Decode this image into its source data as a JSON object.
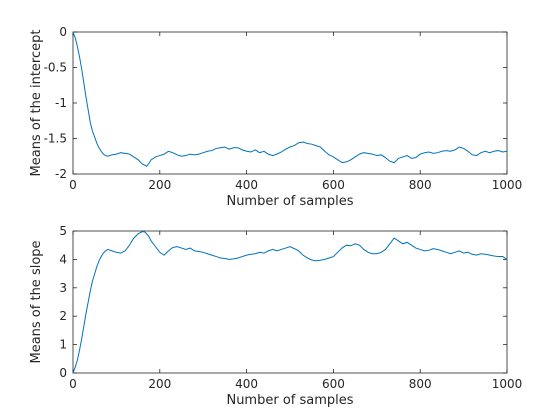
{
  "chart_data": [
    {
      "type": "line",
      "title": "",
      "xlabel": "Number of samples",
      "ylabel": "Means of the intercept",
      "xlim": [
        0,
        1000
      ],
      "ylim": [
        -2,
        0
      ],
      "xticks": [
        0,
        200,
        400,
        600,
        800,
        1000
      ],
      "xtick_labels": [
        "0",
        "200",
        "400",
        "600",
        "800",
        "1000"
      ],
      "yticks": [
        0,
        -0.5,
        -1,
        -1.5,
        -2
      ],
      "ytick_labels": [
        "0",
        "-0.5",
        "-1",
        "-1.5",
        "-2"
      ],
      "grid": false,
      "line_color": "#0072BD",
      "series": [
        {
          "x": [
            0,
            5,
            10,
            15,
            20,
            25,
            30,
            35,
            40,
            45,
            50,
            55,
            60,
            65,
            70,
            75,
            80,
            90,
            100,
            110,
            120,
            130,
            140,
            150,
            160,
            170,
            175,
            180,
            190,
            200,
            210,
            220,
            230,
            240,
            250,
            260,
            270,
            280,
            290,
            300,
            310,
            320,
            330,
            340,
            350,
            360,
            370,
            380,
            390,
            400,
            410,
            420,
            430,
            440,
            450,
            460,
            470,
            480,
            490,
            500,
            510,
            520,
            530,
            540,
            550,
            560,
            570,
            580,
            590,
            600,
            610,
            620,
            630,
            640,
            650,
            660,
            670,
            680,
            690,
            700,
            710,
            720,
            730,
            740,
            750,
            760,
            770,
            780,
            790,
            800,
            810,
            820,
            830,
            840,
            850,
            860,
            870,
            880,
            890,
            900,
            910,
            920,
            930,
            940,
            950,
            960,
            970,
            980,
            990,
            1000
          ],
          "y": [
            0,
            -0.08,
            -0.2,
            -0.35,
            -0.52,
            -0.72,
            -0.92,
            -1.1,
            -1.28,
            -1.4,
            -1.48,
            -1.57,
            -1.63,
            -1.68,
            -1.72,
            -1.74,
            -1.75,
            -1.73,
            -1.72,
            -1.7,
            -1.71,
            -1.72,
            -1.76,
            -1.8,
            -1.86,
            -1.89,
            -1.85,
            -1.8,
            -1.76,
            -1.74,
            -1.72,
            -1.68,
            -1.7,
            -1.73,
            -1.75,
            -1.74,
            -1.72,
            -1.73,
            -1.72,
            -1.7,
            -1.68,
            -1.67,
            -1.64,
            -1.63,
            -1.62,
            -1.65,
            -1.63,
            -1.63,
            -1.66,
            -1.68,
            -1.69,
            -1.66,
            -1.7,
            -1.68,
            -1.72,
            -1.74,
            -1.72,
            -1.69,
            -1.65,
            -1.62,
            -1.6,
            -1.56,
            -1.55,
            -1.57,
            -1.58,
            -1.6,
            -1.62,
            -1.68,
            -1.73,
            -1.76,
            -1.8,
            -1.84,
            -1.83,
            -1.8,
            -1.76,
            -1.72,
            -1.7,
            -1.71,
            -1.72,
            -1.74,
            -1.73,
            -1.77,
            -1.82,
            -1.84,
            -1.78,
            -1.76,
            -1.74,
            -1.78,
            -1.77,
            -1.72,
            -1.7,
            -1.69,
            -1.71,
            -1.7,
            -1.68,
            -1.67,
            -1.68,
            -1.66,
            -1.62,
            -1.64,
            -1.68,
            -1.73,
            -1.74,
            -1.7,
            -1.68,
            -1.7,
            -1.68,
            -1.67,
            -1.69,
            -1.68
          ]
        }
      ]
    },
    {
      "type": "line",
      "title": "",
      "xlabel": "Number of samples",
      "ylabel": "Means of the slope",
      "xlim": [
        0,
        1000
      ],
      "ylim": [
        0,
        5
      ],
      "xticks": [
        0,
        200,
        400,
        600,
        800,
        1000
      ],
      "xtick_labels": [
        "0",
        "200",
        "400",
        "600",
        "800",
        "1000"
      ],
      "yticks": [
        0,
        1,
        2,
        3,
        4,
        5
      ],
      "ytick_labels": [
        "0",
        "1",
        "2",
        "3",
        "4",
        "5"
      ],
      "grid": false,
      "line_color": "#0072BD",
      "series": [
        {
          "x": [
            0,
            5,
            10,
            15,
            20,
            25,
            30,
            35,
            40,
            45,
            50,
            55,
            60,
            65,
            70,
            75,
            80,
            90,
            100,
            110,
            120,
            130,
            140,
            150,
            160,
            165,
            170,
            175,
            180,
            190,
            200,
            210,
            220,
            230,
            240,
            250,
            260,
            270,
            280,
            290,
            300,
            310,
            320,
            330,
            340,
            350,
            360,
            370,
            380,
            390,
            400,
            410,
            420,
            430,
            440,
            450,
            460,
            470,
            480,
            490,
            500,
            510,
            520,
            530,
            540,
            550,
            560,
            570,
            580,
            590,
            600,
            610,
            620,
            630,
            640,
            650,
            660,
            670,
            680,
            690,
            700,
            710,
            720,
            730,
            740,
            750,
            760,
            770,
            780,
            790,
            800,
            810,
            820,
            830,
            840,
            850,
            860,
            870,
            880,
            890,
            900,
            910,
            920,
            930,
            940,
            950,
            960,
            970,
            980,
            990,
            1000
          ],
          "y": [
            0,
            0.2,
            0.45,
            0.8,
            1.2,
            1.65,
            2.1,
            2.5,
            2.9,
            3.25,
            3.5,
            3.75,
            3.95,
            4.1,
            4.22,
            4.3,
            4.35,
            4.3,
            4.25,
            4.22,
            4.3,
            4.5,
            4.75,
            4.9,
            4.98,
            4.97,
            4.9,
            4.8,
            4.65,
            4.45,
            4.25,
            4.15,
            4.3,
            4.42,
            4.45,
            4.4,
            4.35,
            4.4,
            4.3,
            4.28,
            4.25,
            4.2,
            4.15,
            4.1,
            4.05,
            4.03,
            4.0,
            4.02,
            4.05,
            4.1,
            4.15,
            4.18,
            4.2,
            4.25,
            4.22,
            4.3,
            4.35,
            4.3,
            4.35,
            4.4,
            4.45,
            4.38,
            4.3,
            4.15,
            4.05,
            3.98,
            3.95,
            3.97,
            4.0,
            4.05,
            4.1,
            4.25,
            4.4,
            4.5,
            4.48,
            4.55,
            4.5,
            4.35,
            4.25,
            4.2,
            4.2,
            4.25,
            4.35,
            4.55,
            4.75,
            4.65,
            4.55,
            4.6,
            4.5,
            4.4,
            4.35,
            4.3,
            4.32,
            4.38,
            4.35,
            4.3,
            4.25,
            4.2,
            4.25,
            4.3,
            4.22,
            4.25,
            4.18,
            4.15,
            4.2,
            4.18,
            4.15,
            4.12,
            4.1,
            4.1,
            4.0
          ]
        }
      ]
    }
  ]
}
